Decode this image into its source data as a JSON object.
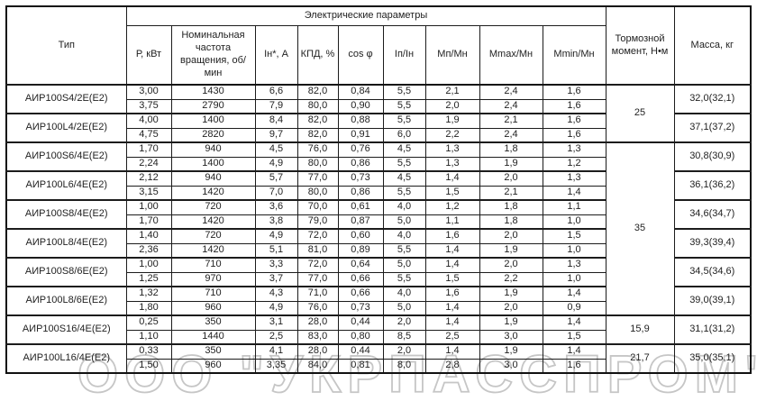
{
  "watermark": "ООО \"УКРПАССПРОМ\"",
  "table": {
    "header": {
      "type_label": "Тип",
      "group_label": "Электрические параметры",
      "columns": [
        "Р, кВт",
        "Номинальная частота вращения, об/мин",
        "Iн*, А",
        "КПД, %",
        "cos φ",
        "Iп/Iн",
        "Мп/Мн",
        "Mmax/Мн",
        "Mmin/Мн"
      ],
      "brake_label": "Тормозной момент, Н•м",
      "mass_label": "Масса, кг"
    },
    "rows": [
      {
        "type": "АИР100S4/2Е(Е2)",
        "sub": [
          [
            "3,00",
            "1430",
            "6,6",
            "82,0",
            "0,84",
            "5,5",
            "2,1",
            "2,4",
            "1,6"
          ],
          [
            "3,75",
            "2790",
            "7,9",
            "80,0",
            "0,90",
            "5,5",
            "2,0",
            "2,4",
            "1,6"
          ]
        ],
        "mass": "32,0(32,1)"
      },
      {
        "type": "АИР100L4/2Е(Е2)",
        "sub": [
          [
            "4,00",
            "1400",
            "8,4",
            "82,0",
            "0,88",
            "5,5",
            "1,9",
            "2,1",
            "1,6"
          ],
          [
            "4,75",
            "2820",
            "9,7",
            "82,0",
            "0,91",
            "6,0",
            "2,2",
            "2,4",
            "1,6"
          ]
        ],
        "mass": "37,1(37,2)"
      },
      {
        "type": "АИР100S6/4Е(Е2)",
        "sub": [
          [
            "1,70",
            "940",
            "4,5",
            "76,0",
            "0,76",
            "4,5",
            "1,3",
            "1,8",
            "1,3"
          ],
          [
            "2,24",
            "1400",
            "4,9",
            "80,0",
            "0,86",
            "5,5",
            "1,3",
            "1,9",
            "1,2"
          ]
        ],
        "mass": "30,8(30,9)"
      },
      {
        "type": "АИР100L6/4Е(Е2)",
        "sub": [
          [
            "2,12",
            "940",
            "5,7",
            "77,0",
            "0,73",
            "4,5",
            "1,4",
            "2,0",
            "1,3"
          ],
          [
            "3,15",
            "1420",
            "7,0",
            "80,0",
            "0,86",
            "5,5",
            "1,5",
            "2,1",
            "1,4"
          ]
        ],
        "mass": "36,1(36,2)"
      },
      {
        "type": "АИР100S8/4Е(Е2)",
        "sub": [
          [
            "1,00",
            "720",
            "3,6",
            "70,0",
            "0,61",
            "4,0",
            "1,2",
            "1,8",
            "1,1"
          ],
          [
            "1,70",
            "1420",
            "3,8",
            "79,0",
            "0,87",
            "5,0",
            "1,1",
            "1,8",
            "1,0"
          ]
        ],
        "mass": "34,6(34,7)"
      },
      {
        "type": "АИР100L8/4Е(Е2)",
        "sub": [
          [
            "1,40",
            "720",
            "4,9",
            "72,0",
            "0,60",
            "4,0",
            "1,6",
            "2,0",
            "1,5"
          ],
          [
            "2,36",
            "1420",
            "5,1",
            "81,0",
            "0,89",
            "5,5",
            "1,4",
            "1,9",
            "1,0"
          ]
        ],
        "mass": "39,3(39,4)"
      },
      {
        "type": "АИР100S8/6Е(Е2)",
        "sub": [
          [
            "1,00",
            "710",
            "3,3",
            "72,0",
            "0,64",
            "5,0",
            "1,4",
            "2,0",
            "1,3"
          ],
          [
            "1,25",
            "970",
            "3,7",
            "77,0",
            "0,66",
            "5,5",
            "1,5",
            "2,2",
            "1,0"
          ]
        ],
        "mass": "34,5(34,6)"
      },
      {
        "type": "АИР100L8/6Е(Е2)",
        "sub": [
          [
            "1,32",
            "710",
            "4,3",
            "71,0",
            "0,66",
            "4,0",
            "1,6",
            "1,9",
            "1,4"
          ],
          [
            "1,80",
            "960",
            "4,9",
            "76,0",
            "0,73",
            "5,0",
            "1,4",
            "2,0",
            "0,9"
          ]
        ],
        "mass": "39,0(39,1)"
      },
      {
        "type": "АИР100S16/4Е(Е2)",
        "sub": [
          [
            "0,25",
            "350",
            "3,1",
            "28,0",
            "0,44",
            "2,0",
            "1,4",
            "1,9",
            "1,4"
          ],
          [
            "1,10",
            "1440",
            "2,5",
            "83,0",
            "0,80",
            "8,5",
            "2,5",
            "3,0",
            "1,5"
          ]
        ],
        "mass": "31,1(31,2)"
      },
      {
        "type": "АИР100L16/4Е(Е2)",
        "sub": [
          [
            "0,33",
            "350",
            "4,1",
            "28,0",
            "0,44",
            "2,0",
            "1,4",
            "1,9",
            "1,4"
          ],
          [
            "1,50",
            "960",
            "3,35",
            "84,0",
            "0,81",
            "8,0",
            "2,8",
            "3,0",
            "1,6"
          ]
        ],
        "mass": "35,0(35,1)"
      }
    ],
    "brake_groups": [
      {
        "value": "25",
        "rows": 2
      },
      {
        "value": "35",
        "rows": 6
      },
      {
        "value": "15,9",
        "rows": 1
      },
      {
        "value": "21,7",
        "rows": 1
      }
    ]
  }
}
